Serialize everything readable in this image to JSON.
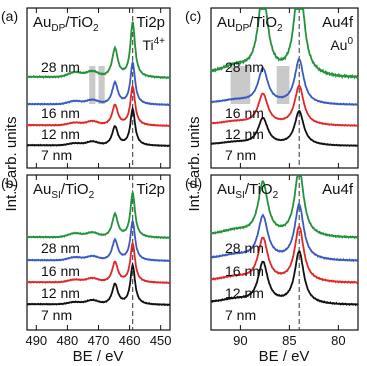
{
  "figure": {
    "ylabel": "Int. / arb. units",
    "xlabel": "BE / eV"
  },
  "colors": {
    "7 nm": "#111111",
    "12 nm": "#e02828",
    "16 nm": "#3a5bbf",
    "28 nm": "#24923a",
    "band": "#c9c9c9"
  },
  "chart_data": [
    {
      "type": "line",
      "panel_label": "(a)",
      "title_main": "Au",
      "title_sub": "DP",
      "title_rest": "/TiO",
      "title_sub2": "2",
      "region": "Ti2p",
      "annotation": "Ti",
      "annotation_sup": "4+",
      "x_reversed": true,
      "xlim": [
        493,
        447
      ],
      "xticks": [
        490,
        480,
        470,
        460,
        450
      ],
      "show_xticklabels": false,
      "vline": 459,
      "shaded": [
        [
          473,
          471
        ],
        [
          470,
          468
        ]
      ],
      "series": [
        {
          "name": "7 nm"
        },
        {
          "name": "12 nm"
        },
        {
          "name": "16 nm"
        },
        {
          "name": "28 nm"
        }
      ]
    },
    {
      "type": "line",
      "panel_label": "(b)",
      "title_main": "Au",
      "title_sub": "SI",
      "title_rest": "/TiO",
      "title_sub2": "2",
      "region": "Ti2p",
      "x_reversed": true,
      "xlim": [
        493,
        447
      ],
      "xticks": [
        490,
        480,
        470,
        460,
        450
      ],
      "show_xticklabels": true,
      "vline": 459,
      "series": [
        {
          "name": "7 nm"
        },
        {
          "name": "12 nm"
        },
        {
          "name": "16 nm"
        },
        {
          "name": "28 nm"
        }
      ]
    },
    {
      "type": "line",
      "panel_label": "(c)",
      "title_main": "Au",
      "title_sub": "DP",
      "title_rest": "/TiO",
      "title_sub2": "2",
      "region": "Au4f",
      "annotation": "Au",
      "annotation_sup": "0",
      "x_reversed": true,
      "xlim": [
        93,
        78
      ],
      "xticks": [
        90,
        85,
        80
      ],
      "show_xticklabels": false,
      "vline": 84,
      "shaded": [
        [
          91,
          89
        ],
        [
          86.3,
          85
        ]
      ],
      "series": [
        {
          "name": "7 nm"
        },
        {
          "name": "12 nm"
        },
        {
          "name": "16 nm"
        },
        {
          "name": "28 nm"
        }
      ]
    },
    {
      "type": "line",
      "panel_label": "(d)",
      "title_main": "Au",
      "title_sub": "SI",
      "title_rest": "/TiO",
      "title_sub2": "2",
      "region": "Au4f",
      "x_reversed": true,
      "xlim": [
        93,
        78
      ],
      "xticks": [
        90,
        85,
        80
      ],
      "show_xticklabels": true,
      "vline": 84,
      "series": [
        {
          "name": "7 nm"
        },
        {
          "name": "12 nm"
        },
        {
          "name": "16 nm"
        },
        {
          "name": "28 nm"
        }
      ]
    }
  ]
}
